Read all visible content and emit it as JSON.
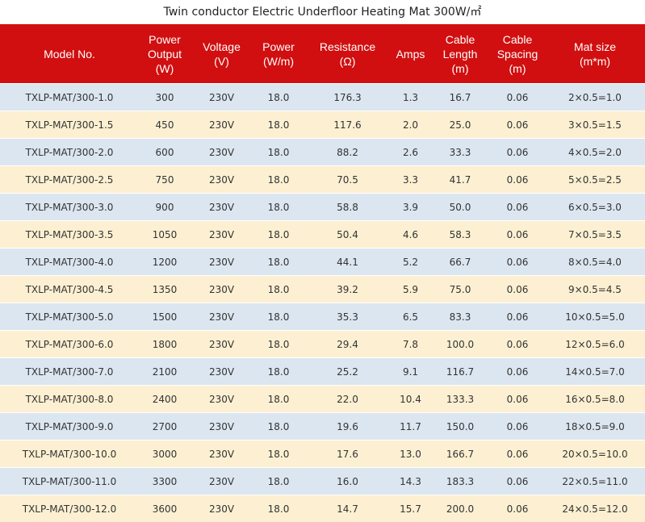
{
  "title": "Twin conductor Electric Underfloor Heating Mat 300W/㎡",
  "headers": [
    [
      "Model No."
    ],
    [
      "Power",
      "Output",
      "(W)"
    ],
    [
      "Voltage",
      "(V)"
    ],
    [
      "Power",
      "(W/m)"
    ],
    [
      "Resistance",
      "(Ω)"
    ],
    [
      "Amps"
    ],
    [
      "Cable",
      "Length",
      "(m)"
    ],
    [
      "Cable",
      "Spacing",
      "(m)"
    ],
    [
      "Mat size",
      "(m*m)"
    ]
  ],
  "rows": [
    [
      "TXLP-MAT/300-1.0",
      "300",
      "230V",
      "18.0",
      "176.3",
      "1.3",
      "16.7",
      "0.06",
      "2×0.5=1.0"
    ],
    [
      "TXLP-MAT/300-1.5",
      "450",
      "230V",
      "18.0",
      "117.6",
      "2.0",
      "25.0",
      "0.06",
      "3×0.5=1.5"
    ],
    [
      "TXLP-MAT/300-2.0",
      "600",
      "230V",
      "18.0",
      "88.2",
      "2.6",
      "33.3",
      "0.06",
      "4×0.5=2.0"
    ],
    [
      "TXLP-MAT/300-2.5",
      "750",
      "230V",
      "18.0",
      "70.5",
      "3.3",
      "41.7",
      "0.06",
      "5×0.5=2.5"
    ],
    [
      "TXLP-MAT/300-3.0",
      "900",
      "230V",
      "18.0",
      "58.8",
      "3.9",
      "50.0",
      "0.06",
      "6×0.5=3.0"
    ],
    [
      "TXLP-MAT/300-3.5",
      "1050",
      "230V",
      "18.0",
      "50.4",
      "4.6",
      "58.3",
      "0.06",
      "7×0.5=3.5"
    ],
    [
      "TXLP-MAT/300-4.0",
      "1200",
      "230V",
      "18.0",
      "44.1",
      "5.2",
      "66.7",
      "0.06",
      "8×0.5=4.0"
    ],
    [
      "TXLP-MAT/300-4.5",
      "1350",
      "230V",
      "18.0",
      "39.2",
      "5.9",
      "75.0",
      "0.06",
      "9×0.5=4.5"
    ],
    [
      "TXLP-MAT/300-5.0",
      "1500",
      "230V",
      "18.0",
      "35.3",
      "6.5",
      "83.3",
      "0.06",
      "10×0.5=5.0"
    ],
    [
      "TXLP-MAT/300-6.0",
      "1800",
      "230V",
      "18.0",
      "29.4",
      "7.8",
      "100.0",
      "0.06",
      "12×0.5=6.0"
    ],
    [
      "TXLP-MAT/300-7.0",
      "2100",
      "230V",
      "18.0",
      "25.2",
      "9.1",
      "116.7",
      "0.06",
      "14×0.5=7.0"
    ],
    [
      "TXLP-MAT/300-8.0",
      "2400",
      "230V",
      "18.0",
      "22.0",
      "10.4",
      "133.3",
      "0.06",
      "16×0.5=8.0"
    ],
    [
      "TXLP-MAT/300-9.0",
      "2700",
      "230V",
      "18.0",
      "19.6",
      "11.7",
      "150.0",
      "0.06",
      "18×0.5=9.0"
    ],
    [
      "TXLP-MAT/300-10.0",
      "3000",
      "230V",
      "18.0",
      "17.6",
      "13.0",
      "166.7",
      "0.06",
      "20×0.5=10.0"
    ],
    [
      "TXLP-MAT/300-11.0",
      "3300",
      "230V",
      "18.0",
      "16.0",
      "14.3",
      "183.3",
      "0.06",
      "22×0.5=11.0"
    ],
    [
      "TXLP-MAT/300-12.0",
      "3600",
      "230V",
      "18.0",
      "14.7",
      "15.7",
      "200.0",
      "0.06",
      "24×0.5=12.0"
    ]
  ],
  "colors": {
    "header_bg": "#d10f10",
    "row_odd_bg": "#dce6f0",
    "row_even_bg": "#fdf0d2"
  }
}
